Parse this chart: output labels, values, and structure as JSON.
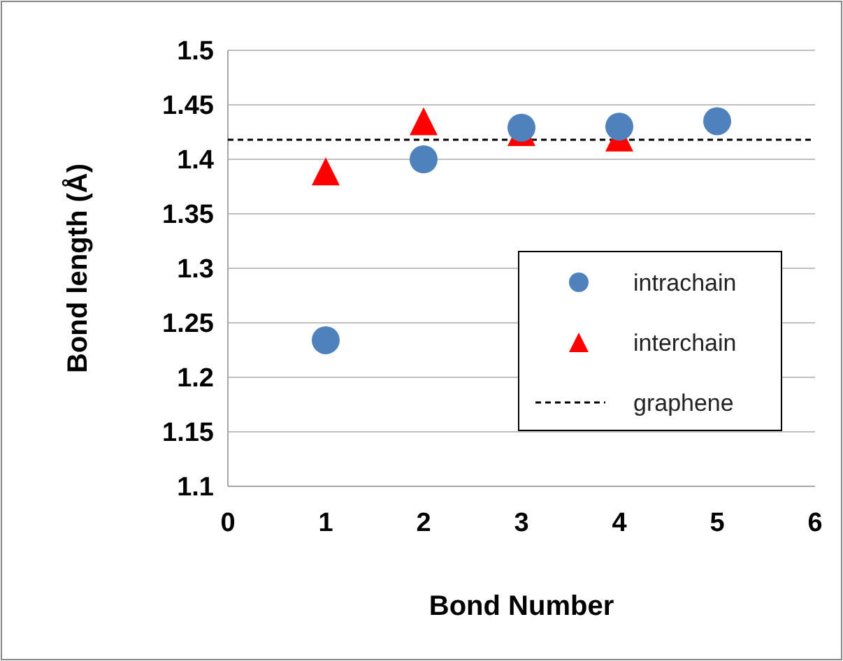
{
  "chart_data": {
    "type": "scatter",
    "xlabel": "Bond Number",
    "ylabel": "Bond length (Å)",
    "xlim": [
      0,
      6
    ],
    "xticks": [
      0,
      1,
      2,
      3,
      4,
      5,
      6
    ],
    "ylim": [
      1.1,
      1.5
    ],
    "yticks": [
      1.1,
      1.15,
      1.2,
      1.25,
      1.3,
      1.35,
      1.4,
      1.45,
      1.5
    ],
    "grid": "y",
    "legend": "right",
    "series": [
      {
        "name": "intrachain",
        "color": "#4f81bd",
        "marker": "circle",
        "x": [
          1,
          2,
          3,
          4,
          5
        ],
        "values": [
          1.234,
          1.4,
          1.429,
          1.43,
          1.435
        ]
      },
      {
        "name": "interchain",
        "color": "#ff0000",
        "marker": "triangle",
        "x": [
          1,
          2,
          3,
          4
        ],
        "values": [
          1.389,
          1.435,
          1.425,
          1.42
        ]
      },
      {
        "name": "graphene",
        "type": "line",
        "color": "#000000",
        "line_style": "dashed",
        "marker": "none",
        "x": [
          0,
          6
        ],
        "values": [
          1.418,
          1.418
        ]
      }
    ]
  }
}
